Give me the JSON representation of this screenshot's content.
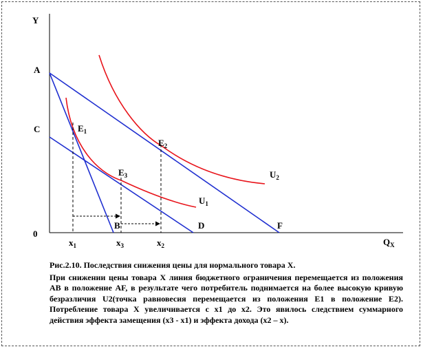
{
  "diagram": {
    "axis_y": "Y",
    "axis_x": "Q",
    "axis_x_sub": "X",
    "origin": "0",
    "points": {
      "A": "A",
      "C": "C",
      "B": "B",
      "D": "D",
      "F": "F",
      "E1": "E",
      "E1_sub": "1",
      "E2": "E",
      "E2_sub": "2",
      "E3": "E",
      "E3_sub": "3"
    },
    "curves": {
      "U1": "U",
      "U1_sub": "1",
      "U2": "U",
      "U2_sub": "2"
    },
    "ticks": {
      "x1": "x",
      "x1_sub": "1",
      "x3": "x",
      "x3_sub": "3",
      "x2": "x",
      "x2_sub": "2"
    },
    "colors": {
      "budget": "#1f2fd0",
      "indifference": "#e8141b"
    }
  },
  "caption": {
    "title": "Рис.2.10. Последствия снижения цены для нормального товара X.",
    "body": "При снижении цены товара X линия бюджетного ограничения перемещается из положения АВ в положение AF, в результате чего потребитель поднимается на более высокую кривую безразличия U2(точка равновесия перемещается из положения E1 в положение E2). Потребление товара X увеличивается с x1 до x2. Это явилось следствием суммарного действия эффекта замещения (x3 - x1) и эффекта дохода (x2 – x)."
  }
}
